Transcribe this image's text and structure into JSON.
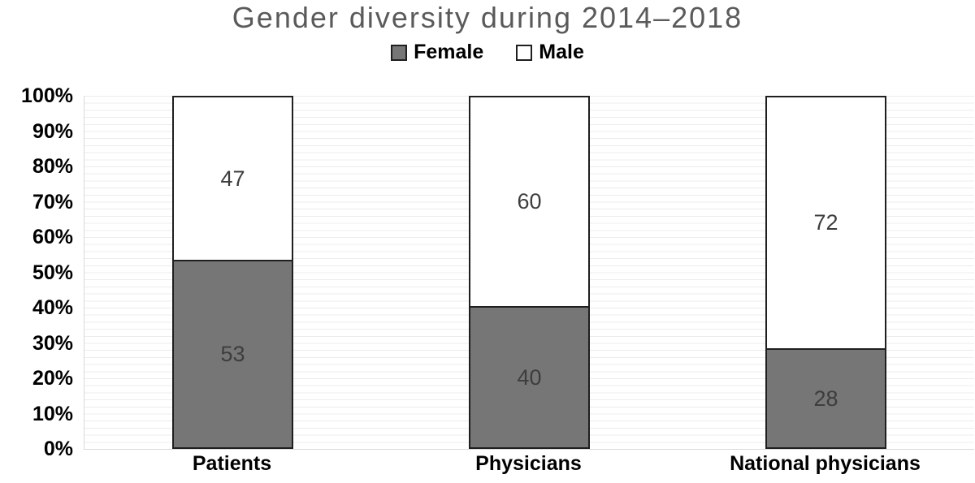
{
  "chart_data": {
    "type": "bar",
    "stacked": true,
    "orientation": "vertical",
    "title": "Gender diversity during 2014–2018",
    "categories": [
      "Patients",
      "Physicians",
      "National physicians"
    ],
    "series": [
      {
        "name": "Female",
        "values": [
          53,
          40,
          28
        ],
        "color": "#767676"
      },
      {
        "name": "Male",
        "values": [
          47,
          60,
          72
        ],
        "color": "#ffffff"
      }
    ],
    "data_labels_shown": true,
    "xlabel": "",
    "ylabel": "",
    "ylim": [
      0,
      100
    ],
    "y_ticks": [
      "0%",
      "10%",
      "20%",
      "30%",
      "40%",
      "50%",
      "60%",
      "70%",
      "80%",
      "90%",
      "100%"
    ],
    "y_major_step_pct": 10,
    "minor_gridline_step_pct": 2,
    "grid": true,
    "legend_position": "top"
  },
  "colors": {
    "female_fill": "#767676",
    "male_fill": "#ffffff",
    "bar_border": "#1f1f1f",
    "minor_gridline": "#ececec",
    "axis_line": "#d9d9d9",
    "title_text": "#5a5a5a",
    "tick_text": "#000000",
    "data_label_text": "#3d3d3d",
    "background": "#ffffff"
  }
}
